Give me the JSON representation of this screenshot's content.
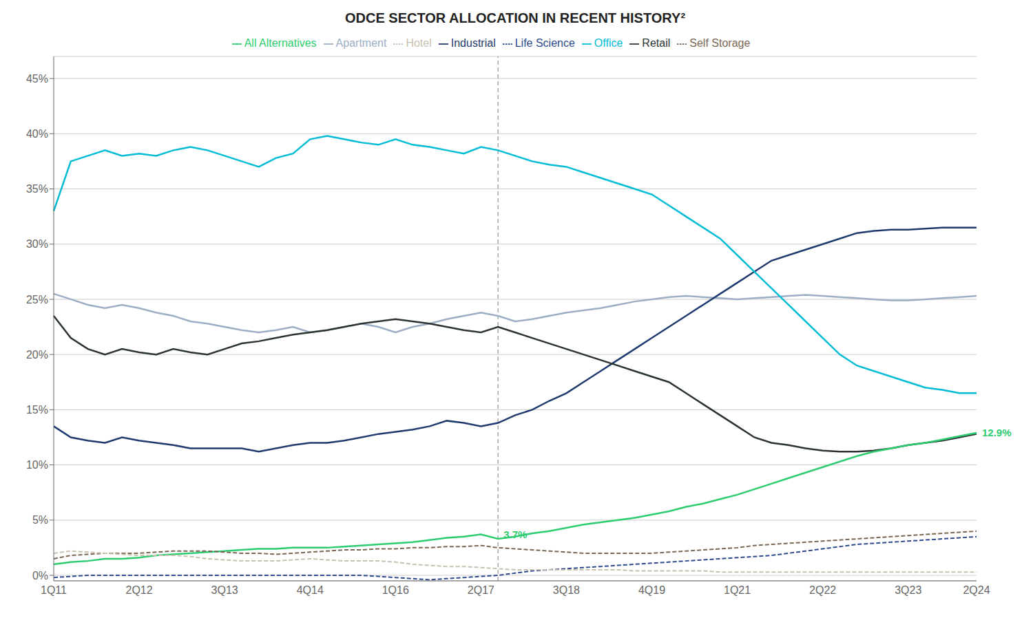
{
  "chart_data": {
    "type": "line",
    "title": "ODCE SECTOR ALLOCATION IN RECENT HISTORY²",
    "categories": [
      "1Q11",
      null,
      null,
      null,
      null,
      "2Q12",
      null,
      null,
      null,
      null,
      "3Q13",
      null,
      null,
      null,
      null,
      "4Q14",
      null,
      null,
      null,
      null,
      "1Q16",
      null,
      null,
      null,
      null,
      "2Q17",
      null,
      null,
      null,
      null,
      "3Q18",
      null,
      null,
      null,
      null,
      "4Q19",
      null,
      null,
      null,
      null,
      "1Q21",
      null,
      null,
      null,
      null,
      "2Q22",
      null,
      null,
      null,
      null,
      "3Q23",
      null,
      null,
      null,
      "2Q24"
    ],
    "ylim": [
      -0.5,
      47
    ],
    "yticks": [
      {
        "value": 0,
        "label": "0%"
      },
      {
        "value": 5,
        "label": "5%"
      },
      {
        "value": 10,
        "label": "10%"
      },
      {
        "value": 15,
        "label": "15%"
      },
      {
        "value": 20,
        "label": "20%"
      },
      {
        "value": 25,
        "label": "25%"
      },
      {
        "value": 30,
        "label": "30%"
      },
      {
        "value": 35,
        "label": "35%"
      },
      {
        "value": 40,
        "label": "40%"
      },
      {
        "value": 45,
        "label": "45%"
      }
    ],
    "grid": "y",
    "legend": "top",
    "vlines": [
      26
    ],
    "annotations": [
      {
        "text": "3.7%",
        "x": 26,
        "y": 3.7,
        "color": "#2ecc71"
      },
      {
        "text": "12.9%",
        "x": 54,
        "y": 12.9,
        "color": "#2ecc71"
      }
    ],
    "series": [
      {
        "name": "Apartment",
        "color": "#9baec4",
        "line_style": "solid",
        "values": [
          25.5,
          25.0,
          24.5,
          24.2,
          24.5,
          24.2,
          23.8,
          23.5,
          23.0,
          22.8,
          22.5,
          22.2,
          22.0,
          22.2,
          22.5,
          22.0,
          22.2,
          22.5,
          22.8,
          22.5,
          22.0,
          22.5,
          22.8,
          23.2,
          23.5,
          23.8,
          23.5,
          23.0,
          23.2,
          23.5,
          23.8,
          24.0,
          24.2,
          24.5,
          24.8,
          25.0,
          25.2,
          25.3,
          25.2,
          25.1,
          25.0,
          25.1,
          25.2,
          25.3,
          25.4,
          25.3,
          25.2,
          25.1,
          25.0,
          24.9,
          24.9,
          25.0,
          25.1,
          25.2,
          25.3
        ]
      },
      {
        "name": "Industrial",
        "color": "#1f3a6e",
        "line_style": "solid",
        "values": [
          13.5,
          12.5,
          12.2,
          12.0,
          12.5,
          12.2,
          12.0,
          11.8,
          11.5,
          11.5,
          11.5,
          11.5,
          11.2,
          11.5,
          11.8,
          12.0,
          12.0,
          12.2,
          12.5,
          12.8,
          13.0,
          13.2,
          13.5,
          14.0,
          13.8,
          13.5,
          13.8,
          14.5,
          15.0,
          15.8,
          16.5,
          17.5,
          18.5,
          19.5,
          20.5,
          21.5,
          22.5,
          23.5,
          24.5,
          25.5,
          26.5,
          27.5,
          28.5,
          29.0,
          29.5,
          30.0,
          30.5,
          31.0,
          31.2,
          31.3,
          31.3,
          31.4,
          31.5,
          31.5,
          31.5
        ]
      },
      {
        "name": "Office",
        "color": "#00bcd4",
        "line_style": "solid",
        "values": [
          33.0,
          37.5,
          38.0,
          38.5,
          38.0,
          38.2,
          38.0,
          38.5,
          38.8,
          38.5,
          38.0,
          37.5,
          37.0,
          37.8,
          38.2,
          39.5,
          39.8,
          39.5,
          39.2,
          39.0,
          39.5,
          39.0,
          38.8,
          38.5,
          38.2,
          38.8,
          38.5,
          38.0,
          37.5,
          37.2,
          37.0,
          36.5,
          36.0,
          35.5,
          35.0,
          34.5,
          33.5,
          32.5,
          31.5,
          30.5,
          29.0,
          27.5,
          26.0,
          24.5,
          23.0,
          21.5,
          20.0,
          19.0,
          18.5,
          18.0,
          17.5,
          17.0,
          16.8,
          16.5,
          16.5
        ]
      },
      {
        "name": "Retail",
        "color": "#2c3333",
        "line_style": "solid",
        "values": [
          23.5,
          21.5,
          20.5,
          20.0,
          20.5,
          20.2,
          20.0,
          20.5,
          20.2,
          20.0,
          20.5,
          21.0,
          21.2,
          21.5,
          21.8,
          22.0,
          22.2,
          22.5,
          22.8,
          23.0,
          23.2,
          23.0,
          22.8,
          22.5,
          22.2,
          22.0,
          22.5,
          22.0,
          21.5,
          21.0,
          20.5,
          20.0,
          19.5,
          19.0,
          18.5,
          18.0,
          17.5,
          16.5,
          15.5,
          14.5,
          13.5,
          12.5,
          12.0,
          11.8,
          11.5,
          11.3,
          11.2,
          11.2,
          11.3,
          11.5,
          11.8,
          12.0,
          12.2,
          12.5,
          12.8
        ]
      },
      {
        "name": "All Alternatives",
        "color": "#2ecc71",
        "line_style": "solid",
        "values": [
          1.0,
          1.2,
          1.3,
          1.5,
          1.5,
          1.6,
          1.8,
          1.9,
          2.0,
          2.1,
          2.2,
          2.3,
          2.4,
          2.4,
          2.5,
          2.5,
          2.5,
          2.6,
          2.7,
          2.8,
          2.9,
          3.0,
          3.2,
          3.4,
          3.5,
          3.7,
          3.3,
          3.5,
          3.8,
          4.0,
          4.3,
          4.6,
          4.8,
          5.0,
          5.2,
          5.5,
          5.8,
          6.2,
          6.5,
          6.9,
          7.3,
          7.8,
          8.3,
          8.8,
          9.3,
          9.8,
          10.3,
          10.8,
          11.2,
          11.5,
          11.8,
          12.0,
          12.3,
          12.6,
          12.9
        ]
      },
      {
        "name": "Life Science",
        "color": "#2c4a8c",
        "line_style": "dashed",
        "values": [
          -0.2,
          -0.1,
          0.0,
          0.0,
          0.0,
          0.0,
          0.0,
          0.0,
          0.0,
          0.0,
          0.0,
          0.0,
          0.0,
          0.0,
          0.0,
          0.0,
          0.0,
          0.0,
          0.0,
          -0.1,
          -0.2,
          -0.3,
          -0.4,
          -0.3,
          -0.2,
          -0.1,
          0.0,
          0.2,
          0.4,
          0.5,
          0.6,
          0.7,
          0.8,
          0.9,
          1.0,
          1.1,
          1.2,
          1.3,
          1.4,
          1.5,
          1.6,
          1.7,
          1.8,
          2.0,
          2.2,
          2.4,
          2.6,
          2.8,
          2.9,
          3.0,
          3.1,
          3.2,
          3.3,
          3.4,
          3.5
        ]
      },
      {
        "name": "Self Storage",
        "color": "#7a6652",
        "line_style": "dashed",
        "values": [
          1.5,
          1.8,
          1.9,
          2.0,
          2.0,
          2.0,
          2.1,
          2.2,
          2.2,
          2.2,
          2.1,
          2.0,
          2.0,
          1.9,
          2.0,
          2.1,
          2.2,
          2.3,
          2.3,
          2.4,
          2.4,
          2.5,
          2.5,
          2.6,
          2.6,
          2.7,
          2.5,
          2.4,
          2.3,
          2.2,
          2.1,
          2.0,
          2.0,
          2.0,
          2.0,
          2.0,
          2.1,
          2.2,
          2.3,
          2.4,
          2.5,
          2.7,
          2.8,
          2.9,
          3.0,
          3.1,
          3.2,
          3.3,
          3.4,
          3.5,
          3.6,
          3.7,
          3.8,
          3.9,
          4.0
        ]
      },
      {
        "name": "Hotel",
        "color": "#c8c0b0",
        "line_style": "dashed",
        "values": [
          2.0,
          2.2,
          2.1,
          2.0,
          1.9,
          1.8,
          1.8,
          1.8,
          1.7,
          1.5,
          1.4,
          1.3,
          1.3,
          1.3,
          1.4,
          1.5,
          1.4,
          1.3,
          1.3,
          1.3,
          1.2,
          1.0,
          0.9,
          0.8,
          0.8,
          0.7,
          0.6,
          0.5,
          0.5,
          0.5,
          0.5,
          0.5,
          0.5,
          0.5,
          0.4,
          0.4,
          0.4,
          0.4,
          0.4,
          0.3,
          0.3,
          0.3,
          0.3,
          0.3,
          0.3,
          0.3,
          0.3,
          0.3,
          0.3,
          0.3,
          0.3,
          0.3,
          0.3,
          0.3,
          0.3
        ]
      }
    ]
  }
}
